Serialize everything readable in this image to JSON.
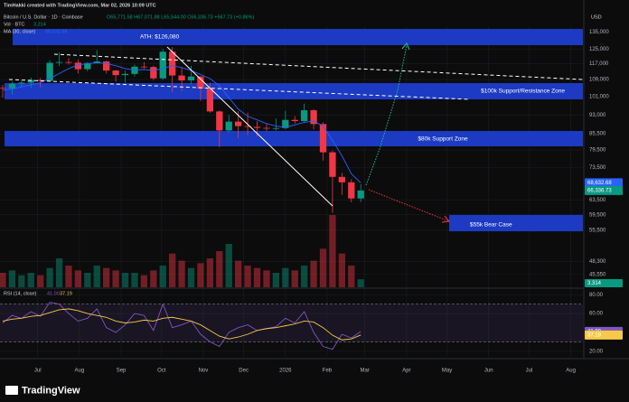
{
  "header": {
    "credit": "TimHakki created with TradingView.com, Mar 02, 2026 10:09 UTC",
    "symbol": "Bitcoin / U.S. Dollar · 1D · Coinbase",
    "ohlc": "O65,771.58 H67,071.88 L65,544.00 C66,336.73 +567.73 (+0.86%)",
    "volume": "Vol · BTC",
    "volume_value": "3.314",
    "ma": "MA (30, close)",
    "ma_value": "68,632.68",
    "currency": "USD",
    "rsi": "RSI (14, close)",
    "rsi_value": "41.00",
    "rsi_ma_value": "37.19"
  },
  "footer": {
    "brand": "TradingView"
  },
  "chart_data": [
    {
      "type": "candlestick",
      "log": true,
      "grid": true,
      "xlim": [
        -28,
        405
      ],
      "x": [
        -26,
        -19,
        -12,
        -5,
        2,
        9,
        16,
        23,
        30,
        37,
        44,
        51,
        58,
        65,
        72,
        79,
        86,
        93,
        100,
        107,
        114,
        121,
        128,
        135,
        142,
        149,
        156,
        163,
        170,
        177,
        184,
        191,
        198,
        205,
        212,
        219,
        226,
        233,
        240
      ],
      "open": [
        105000,
        104800,
        107000,
        107500,
        108800,
        108300,
        117500,
        117900,
        117600,
        114200,
        117400,
        118200,
        113500,
        111200,
        111800,
        115500,
        115300,
        109600,
        123500,
        111000,
        108600,
        110500,
        104700,
        94500,
        86800,
        90300,
        88500,
        88200,
        87800,
        87500,
        87700,
        91000,
        90500,
        95000,
        89300,
        78700,
        70500,
        68800,
        64000
      ],
      "high": [
        106500,
        108000,
        108500,
        110000,
        109800,
        118800,
        123200,
        120000,
        119200,
        117800,
        124400,
        118600,
        113800,
        113500,
        116500,
        117900,
        116000,
        125000,
        126080,
        115000,
        116000,
        110800,
        107500,
        95000,
        93000,
        94600,
        94000,
        90500,
        89500,
        91500,
        94800,
        92500,
        97900,
        95500,
        90000,
        79300,
        71800,
        69800,
        68200
      ],
      "low": [
        100500,
        102000,
        105500,
        105000,
        105200,
        108000,
        115800,
        116500,
        112000,
        113200,
        117000,
        112000,
        108000,
        107400,
        110600,
        114500,
        108700,
        108800,
        103000,
        103500,
        106800,
        99000,
        94000,
        80600,
        86000,
        83800,
        85100,
        84500,
        86500,
        86800,
        87300,
        89500,
        90000,
        87300,
        75800,
        60000,
        65000,
        62900,
        63000
      ],
      "close": [
        104800,
        107000,
        107500,
        108800,
        108300,
        117500,
        117900,
        117600,
        114200,
        117400,
        118200,
        113500,
        111200,
        111800,
        115500,
        115300,
        109600,
        123500,
        111000,
        108600,
        110500,
        104700,
        94500,
        86800,
        90300,
        88500,
        88200,
        87800,
        87500,
        87700,
        91000,
        90500,
        95000,
        89300,
        78700,
        70500,
        68800,
        64000,
        66336.73
      ],
      "up_color": "#089981",
      "down_color": "#f23645",
      "series": [
        {
          "name": "MA (30, close)",
          "color": "#2962ff",
          "values": [
            104000,
            104500,
            105500,
            106500,
            107500,
            109500,
            112000,
            114500,
            116500,
            117000,
            117500,
            117200,
            116000,
            114500,
            113800,
            114000,
            113500,
            114500,
            116000,
            115000,
            113500,
            111500,
            109500,
            106000,
            100500,
            95500,
            92500,
            91000,
            89500,
            88500,
            88000,
            89000,
            90000,
            90500,
            88500,
            83000,
            77500,
            71500,
            68632.68
          ]
        },
        {
          "name": "Vol · BTC",
          "color": "#f23645",
          "values": [
            6,
            7,
            5,
            6,
            5,
            8,
            12,
            9,
            7,
            6,
            9,
            8,
            7,
            6,
            6,
            5,
            7,
            9,
            14,
            11,
            8,
            10,
            12,
            15,
            18,
            11,
            9,
            8,
            7,
            6,
            8,
            7,
            9,
            11,
            16,
            30,
            14,
            9,
            3.314
          ]
        }
      ],
      "ylim": [
        43000,
        139000
      ],
      "yticks": [
        {
          "value": 135000,
          "label": "135,000"
        },
        {
          "value": 125000,
          "label": "125,000"
        },
        {
          "value": 117000,
          "label": "117,000"
        },
        {
          "value": 109000,
          "label": "109,000"
        },
        {
          "value": 101000,
          "label": "101,000"
        },
        {
          "value": 93000,
          "label": "93,000"
        },
        {
          "value": 85500,
          "label": "85,500"
        },
        {
          "value": 79500,
          "label": "79,500"
        },
        {
          "value": 73500,
          "label": "73,500"
        },
        {
          "value": 63500,
          "label": "63,500"
        },
        {
          "value": 59500,
          "label": "59,500"
        },
        {
          "value": 55500,
          "label": "55,500"
        },
        {
          "value": 48300,
          "label": "48,300"
        },
        {
          "value": 45550,
          "label": "45,550"
        }
      ],
      "tags": [
        {
          "value": 68632.68,
          "label": "68,632.68",
          "color": "#2962ff"
        },
        {
          "value": 66336.73,
          "label": "66,336.73",
          "color": "#089981"
        }
      ],
      "annotations": [
        "ATH: $126,080",
        "$100k Support/Resistance Zone",
        "$80k Support Zone",
        "$55k Bear Case"
      ]
    },
    {
      "type": "line",
      "grid": true,
      "xlim": [
        -28,
        405
      ],
      "x": [
        -26,
        -19,
        -12,
        -5,
        2,
        9,
        16,
        23,
        30,
        37,
        44,
        51,
        58,
        65,
        72,
        79,
        86,
        93,
        100,
        107,
        114,
        121,
        128,
        135,
        142,
        149,
        156,
        163,
        170,
        177,
        184,
        191,
        198,
        205,
        212,
        219,
        226,
        233,
        240
      ],
      "xticks": [
        {
          "value": 0,
          "label": "Jul"
        },
        {
          "value": 31,
          "label": "Aug"
        },
        {
          "value": 62,
          "label": "Sep"
        },
        {
          "value": 92,
          "label": "Oct"
        },
        {
          "value": 123,
          "label": "Nov"
        },
        {
          "value": 153,
          "label": "Dec"
        },
        {
          "value": 184,
          "label": "2026"
        },
        {
          "value": 215,
          "label": "Feb"
        },
        {
          "value": 243,
          "label": "Mar"
        },
        {
          "value": 274,
          "label": "Apr"
        },
        {
          "value": 304,
          "label": "May"
        },
        {
          "value": 335,
          "label": "Jun"
        },
        {
          "value": 365,
          "label": "Jul"
        },
        {
          "value": 396,
          "label": "Aug"
        }
      ],
      "series": [
        {
          "name": "RSI",
          "color": "#7e57c2",
          "values": [
            50,
            58,
            55,
            62,
            57,
            72,
            70,
            60,
            52,
            55,
            65,
            45,
            40,
            48,
            60,
            58,
            42,
            70,
            45,
            48,
            52,
            38,
            30,
            25,
            40,
            45,
            48,
            42,
            44,
            46,
            55,
            50,
            62,
            40,
            25,
            22,
            38,
            34,
            41
          ]
        },
        {
          "name": "RSI MA",
          "color": "#f7c948",
          "values": [
            52,
            54,
            55,
            57,
            58,
            61,
            64,
            65,
            63,
            60,
            58,
            56,
            52,
            50,
            51,
            53,
            52,
            55,
            56,
            54,
            52,
            48,
            42,
            36,
            33,
            35,
            38,
            42,
            44,
            45,
            47,
            49,
            52,
            51,
            45,
            37,
            32,
            33,
            37.19
          ]
        }
      ],
      "band": [
        30,
        70
      ],
      "ylim": [
        14,
        86
      ],
      "yticks": [
        {
          "value": 80,
          "label": "80.00"
        },
        {
          "value": 60,
          "label": "60.00"
        },
        {
          "value": 20,
          "label": "20.00"
        }
      ],
      "tags": [
        {
          "value": 41,
          "label": "41.00",
          "color": "#7e57c2"
        },
        {
          "value": 37.19,
          "label": "37.19",
          "color": "#f7c948"
        }
      ]
    }
  ]
}
